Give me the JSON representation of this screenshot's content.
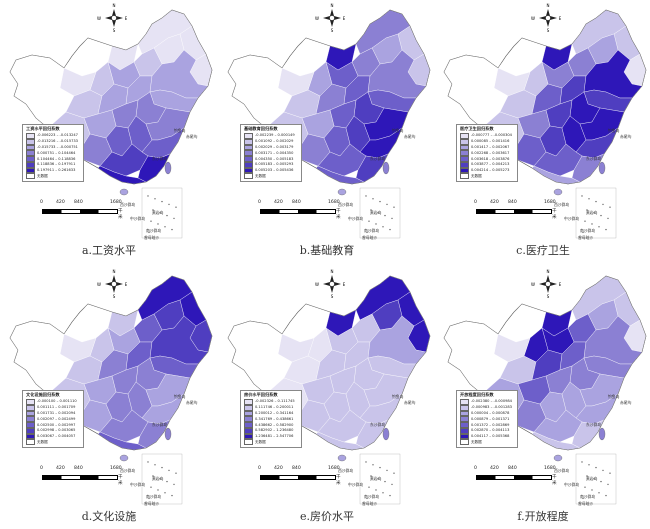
{
  "panels": [
    {
      "caption": "a.工资水平",
      "legend_title": "工资水平回归系数",
      "legend_items": [
        "-0.006223 – -0.013247",
        "-0.013216 – -0.015733",
        "-0.015733 – -0.000751",
        "0.000751 – 0.104464",
        "0.104464 – 0.118836",
        "0.118836 – 0.197911",
        "0.197911 – 0.261633",
        "无数据"
      ],
      "colors": [
        "#e6e3f4",
        "#c9c4ea",
        "#aaa3e0",
        "#8b80d3",
        "#6d5fca",
        "#4f3ec0",
        "#2e17b8",
        "#ffffff"
      ],
      "pattern": "south"
    },
    {
      "caption": "b.基础教育",
      "legend_title": "基础教育回归系数",
      "legend_items": [
        "-0.002239 – 0.000149",
        "0.001092 – 0.002029",
        "0.002029 – 0.003179",
        "0.003171 – 0.004350",
        "0.004350 – 0.005183",
        "0.005183 – 0.005293",
        "0.005203 – 0.005436",
        "无数据"
      ],
      "colors": [
        "#e6e3f4",
        "#c9c4ea",
        "#aaa3e0",
        "#8b80d3",
        "#6d5fca",
        "#4f3ec0",
        "#2e17b8",
        "#ffffff"
      ],
      "pattern": "east"
    },
    {
      "caption": "c.医疗卫生",
      "legend_title": "医疗卫生回归系数",
      "legend_items": [
        "-0.000777 – -0.000304",
        "0.000085 – 0.001416",
        "0.001417 – 0.002067",
        "0.002268 – 0.003617",
        "0.003618 – 0.003876",
        "0.003877 – 0.004213",
        "0.004214 – 0.005273",
        "无数据"
      ],
      "colors": [
        "#e6e3f4",
        "#c9c4ea",
        "#aaa3e0",
        "#8b80d3",
        "#6d5fca",
        "#4f3ec0",
        "#2e17b8",
        "#ffffff"
      ],
      "pattern": "central"
    },
    {
      "caption": "d.文化设施",
      "legend_title": "文化设施回归系数",
      "legend_items": [
        "-0.000100 – 0.001110",
        "0.001111 – 0.001709",
        "0.001731 – 0.002094",
        "0.002097 – 0.002499",
        "0.002500 – 0.002997",
        "0.002998 – 0.003065",
        "0.003067 – 0.004057",
        "无数据"
      ],
      "colors": [
        "#e6e3f4",
        "#c9c4ea",
        "#aaa3e0",
        "#8b80d3",
        "#6d5fca",
        "#4f3ec0",
        "#2e17b8",
        "#ffffff"
      ],
      "pattern": "northeast"
    },
    {
      "caption": "e.房价水平",
      "legend_title": "房价水平回归系数",
      "legend_items": [
        "-0.002326 – 0.111745",
        "0.111746 – 0.200011",
        "0.200012 – 0.341164",
        "0.341769 – 0.438661",
        "0.438662 – 0.582900",
        "0.582902 – 1.236480",
        "1.236481 – 2.547706",
        "无数据"
      ],
      "colors": [
        "#e6e3f4",
        "#c9c4ea",
        "#aaa3e0",
        "#8b80d3",
        "#6d5fca",
        "#4f3ec0",
        "#2e17b8",
        "#ffffff"
      ],
      "pattern": "northeast_strong"
    },
    {
      "caption": "f.开放程度",
      "legend_title": "开放程度回归系数",
      "legend_items": [
        "-0.002380 – -0.000984",
        "-0.000983 – -0.001283",
        "0.000004 – 0.000878",
        "0.000879 – 0.001371",
        "0.001372 – 0.002869",
        "0.002870 – 0.004113",
        "0.004117 – 0.005368",
        "无数据"
      ],
      "colors": [
        "#e6e3f4",
        "#c9c4ea",
        "#aaa3e0",
        "#8b80d3",
        "#6d5fca",
        "#4f3ec0",
        "#2e17b8",
        "#ffffff"
      ],
      "pattern": "north_central"
    }
  ],
  "map_labels": {
    "diaoyu": "钓鱼岛",
    "chiwei": "赤尾屿",
    "dongsha": "东沙群岛",
    "xisha": "西沙群岛",
    "zhongsha": "中沙群岛",
    "huangyan": "黄岩岛",
    "nansha": "南沙群岛",
    "zengmu": "曾母暗沙"
  },
  "scale": {
    "ticks": [
      "0",
      "420",
      "840",
      "1680"
    ],
    "unit": "千米"
  },
  "compass": {
    "n": "N",
    "s": "S",
    "e": "E",
    "w": "W"
  }
}
